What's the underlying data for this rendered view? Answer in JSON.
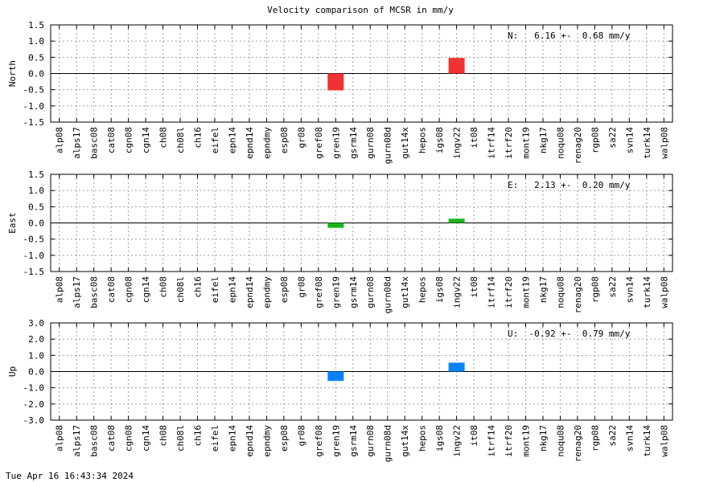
{
  "chart_data": {
    "type": "bar",
    "title": "Velocity comparison of MCSR in mm/y",
    "categories": [
      "alp08",
      "alps17",
      "basc08",
      "cat08",
      "cgn08",
      "cgn14",
      "ch08",
      "ch08l",
      "ch16",
      "eifel",
      "epn14",
      "epnd14",
      "epndmy",
      "esp08",
      "gr08",
      "gref08",
      "gren19",
      "gsrm14",
      "gurn08",
      "gurn08d",
      "gut14x",
      "hepos",
      "igs08",
      "ingv22",
      "it08",
      "itrf14",
      "itrf20",
      "mont19",
      "nkg17",
      "noqu08",
      "renag20",
      "rgp08",
      "sa22",
      "svn14",
      "turk14",
      "walp08"
    ],
    "panels": [
      {
        "ylabel": "North",
        "ylim": [
          -1.5,
          1.5
        ],
        "yticks": [
          "1.5",
          "1.0",
          "0.5",
          "0.0",
          "-0.5",
          "-1.0",
          "-1.5"
        ],
        "tick_values": [
          1.5,
          1.0,
          0.5,
          0.0,
          -0.5,
          -1.0,
          -1.5
        ],
        "color": "#f03232",
        "legend": "N:   6.16 +-  0.68 mm/y",
        "values": [
          0,
          0,
          0,
          0,
          0,
          0,
          0,
          0,
          0,
          0,
          0,
          0,
          0,
          0,
          0,
          0,
          -0.52,
          0,
          0,
          0,
          0,
          0,
          0,
          0.48,
          0,
          0,
          0,
          0,
          0,
          0,
          0,
          0,
          0,
          0,
          0,
          0
        ]
      },
      {
        "ylabel": "East",
        "ylim": [
          -1.5,
          1.5
        ],
        "yticks": [
          "1.5",
          "1.0",
          "0.5",
          "0.0",
          "-0.5",
          "-1.0",
          "-1.5"
        ],
        "tick_values": [
          1.5,
          1.0,
          0.5,
          0.0,
          -0.5,
          -1.0,
          -1.5
        ],
        "color": "#1ab51a",
        "legend": "E:   2.13 +-  0.20 mm/y",
        "values": [
          0,
          0,
          0,
          0,
          0,
          0,
          0,
          0,
          0,
          0,
          0,
          0,
          0,
          0,
          0,
          0,
          -0.15,
          0,
          0,
          0,
          0,
          0,
          0,
          0.13,
          0,
          0,
          0,
          0,
          0,
          0,
          0,
          0,
          0,
          0,
          0,
          0
        ]
      },
      {
        "ylabel": "Up",
        "ylim": [
          -3.0,
          3.0
        ],
        "yticks": [
          "3.0",
          "2.0",
          "1.0",
          "0.0",
          "-1.0",
          "-2.0",
          "-3.0"
        ],
        "tick_values": [
          3.0,
          2.0,
          1.0,
          0.0,
          -1.0,
          -2.0,
          -3.0
        ],
        "color": "#0a82f5",
        "legend": "U:  -0.92 +-  0.79 mm/y",
        "values": [
          0,
          0,
          0,
          0,
          0,
          0,
          0,
          0,
          0,
          0,
          0,
          0,
          0,
          0,
          0,
          0,
          -0.58,
          0,
          0,
          0,
          0,
          0,
          0,
          0.55,
          0,
          0,
          0,
          0,
          0,
          0,
          0,
          0,
          0,
          0,
          0,
          0
        ]
      }
    ],
    "grid": true
  },
  "footer": {
    "timestamp": "Tue Apr 16 16:43:34 2024"
  }
}
